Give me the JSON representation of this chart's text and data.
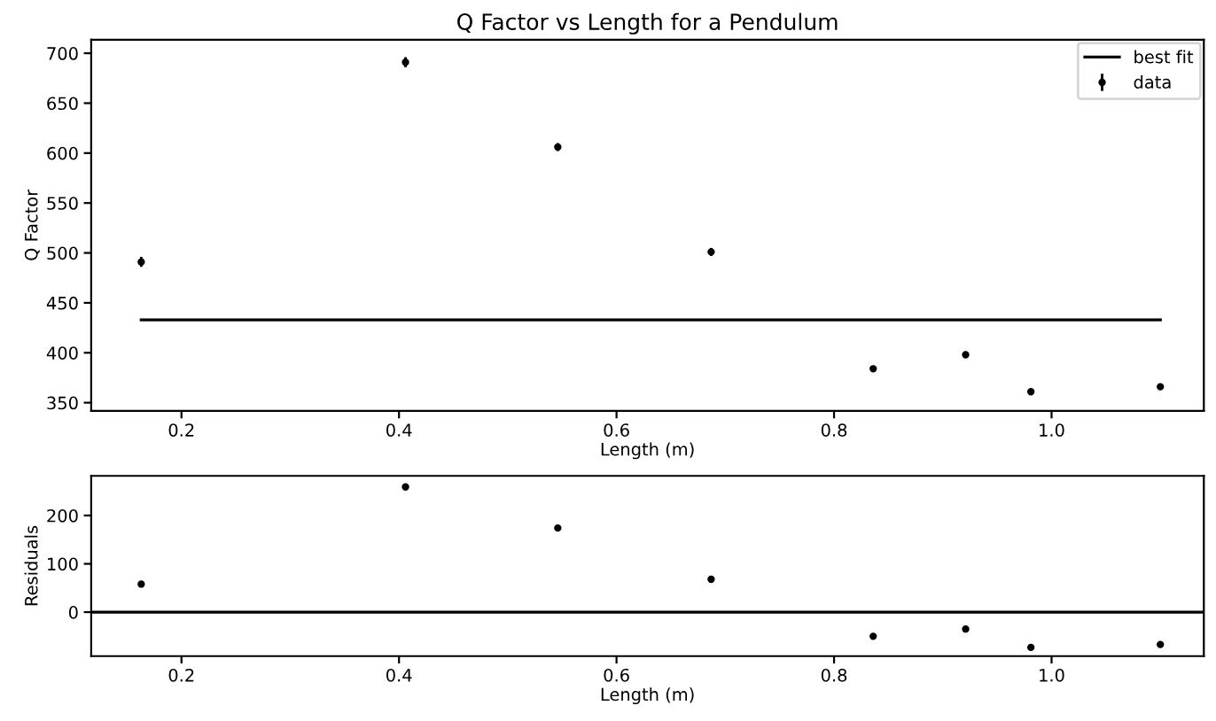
{
  "chart_data": [
    {
      "type": "scatter",
      "title": "Q Factor vs Length for a Pendulum",
      "xlabel": "Length (m)",
      "ylabel": "Q Factor",
      "legend": "top right",
      "marker": "circle",
      "xlim": [
        0.117,
        1.14
      ],
      "xticks": [
        {
          "value": 0.2,
          "label": "0.2"
        },
        {
          "value": 0.4,
          "label": "0.4"
        },
        {
          "value": 0.6,
          "label": "0.6"
        },
        {
          "value": 0.8,
          "label": "0.8"
        },
        {
          "value": 1.0,
          "label": "1.0"
        }
      ],
      "ylim": [
        341.7,
        713.6
      ],
      "yticks": [
        350,
        400,
        450,
        500,
        550,
        600,
        650,
        700
      ],
      "series": [
        {
          "name": "best fit",
          "type": "line",
          "color": "#000000",
          "marker": "none",
          "x": [
            0.163,
            1.1
          ],
          "values": [
            433,
            433
          ]
        },
        {
          "name": "data",
          "type": "scatter",
          "color": "#000000",
          "x": [
            0.163,
            0.406,
            0.546,
            0.687,
            0.836,
            0.921,
            0.981,
            1.1
          ],
          "values": [
            491,
            691,
            606,
            501,
            384,
            398,
            361,
            366
          ],
          "errors": [
            5,
            5,
            4,
            4,
            3,
            3,
            3,
            3
          ]
        }
      ]
    },
    {
      "type": "scatter",
      "xlabel": "Length (m)",
      "ylabel": "Residuals",
      "marker": "circle",
      "xlim": [
        0.117,
        1.14
      ],
      "xticks": [
        {
          "value": 0.2,
          "label": "0.2"
        },
        {
          "value": 0.4,
          "label": "0.4"
        },
        {
          "value": 0.6,
          "label": "0.6"
        },
        {
          "value": 0.8,
          "label": "0.8"
        },
        {
          "value": 1.0,
          "label": "1.0"
        }
      ],
      "ylim": [
        -91,
        282
      ],
      "yticks": [
        0,
        100,
        200
      ],
      "ref_lines": [
        {
          "axis": "y",
          "value": 0,
          "color": "#000000"
        }
      ],
      "series": [
        {
          "color": "#000000",
          "x": [
            0.163,
            0.406,
            0.546,
            0.687,
            0.836,
            0.921,
            0.981,
            1.1
          ],
          "values": [
            58,
            259,
            174,
            68,
            -50,
            -35,
            -73,
            -67
          ]
        }
      ]
    }
  ]
}
